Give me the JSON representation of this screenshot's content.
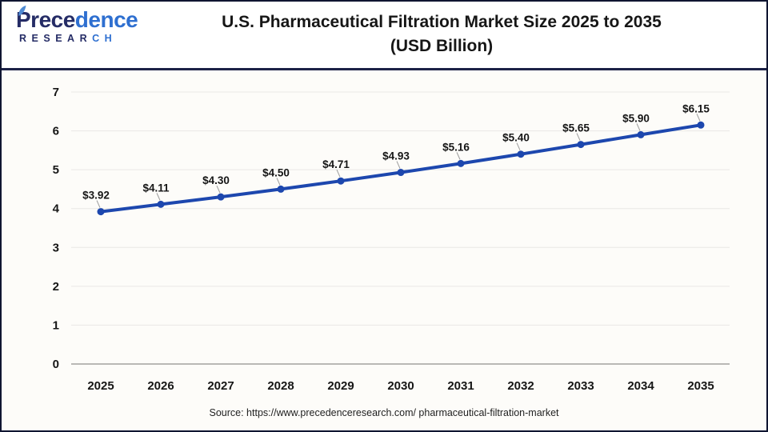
{
  "logo": {
    "name_dark": "Prece",
    "name_light": "dence",
    "sub_dark": "RESEAR",
    "sub_light": "CH"
  },
  "header": {
    "title_line1": "U.S. Pharmaceutical Filtration Market Size 2025 to 2035",
    "title_line2": "(USD Billion)"
  },
  "footer": {
    "source": "Source: https://www.precedenceresearch.com/ pharmaceutical-filtration-market"
  },
  "chart_data": {
    "type": "line",
    "title": "U.S. Pharmaceutical Filtration Market Size 2025 to 2035 (USD Billion)",
    "categories": [
      "2025",
      "2026",
      "2027",
      "2028",
      "2029",
      "2030",
      "2031",
      "2032",
      "2033",
      "2034",
      "2035"
    ],
    "values": [
      3.92,
      4.11,
      4.3,
      4.5,
      4.71,
      4.93,
      5.16,
      5.4,
      5.65,
      5.9,
      6.15
    ],
    "point_labels": [
      "$3.92",
      "$4.11",
      "$4.30",
      "$4.50",
      "$4.71",
      "$4.93",
      "$5.16",
      "$5.40",
      "$5.65",
      "$5.90",
      "$6.15"
    ],
    "xlabel": "",
    "ylabel": "",
    "ylim": [
      0,
      7
    ],
    "ytick_step": 1,
    "grid": true,
    "legend": "none",
    "colors": {
      "line": "#1d47ae",
      "marker": "#1d47ae",
      "grid": "#e9e8e5",
      "axis": "#b9b8b5",
      "leader": "#9a9a9a",
      "label": "#161616"
    }
  }
}
